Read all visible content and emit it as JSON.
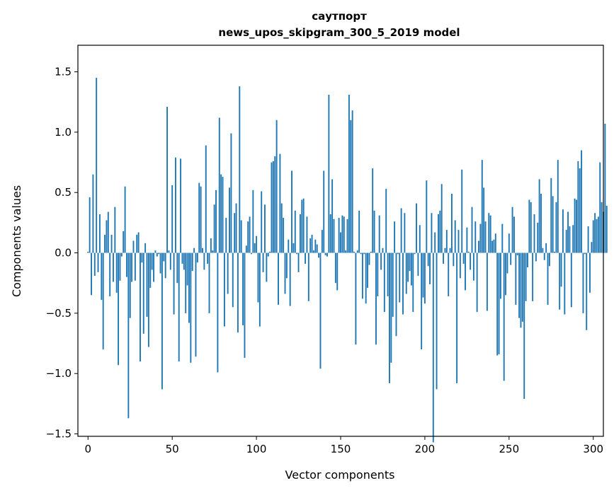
{
  "chart_data": {
    "type": "bar",
    "title_lines": [
      "саутпорт",
      "news_upos_skipgram_300_5_2019 model"
    ],
    "xlabel": "Vector components",
    "ylabel": "Components values",
    "xlim": [
      -6,
      306
    ],
    "ylim": [
      -1.52,
      1.72
    ],
    "x_ticks": [
      0,
      50,
      100,
      150,
      200,
      250,
      300
    ],
    "y_ticks": [
      -1.5,
      -1.0,
      -0.5,
      0.0,
      0.5,
      1.0,
      1.5
    ],
    "y_tick_labels": [
      "−1.5",
      "−1.0",
      "−0.5",
      "0.0",
      "0.5",
      "1.0",
      "1.5"
    ],
    "grid": false,
    "bar_color": "#1f77b4",
    "values": [
      0.01,
      0.46,
      -0.35,
      0.65,
      -0.19,
      1.45,
      -0.16,
      0.32,
      -0.39,
      -0.8,
      0.15,
      0.27,
      0.34,
      -0.36,
      0.15,
      -0.24,
      0.38,
      -0.33,
      -0.93,
      -0.23,
      -0.03,
      0.18,
      0.55,
      -0.2,
      -1.37,
      -0.54,
      -0.24,
      0.1,
      -0.23,
      0.15,
      0.17,
      -0.9,
      -0.08,
      -0.67,
      0.08,
      -0.53,
      -0.78,
      -0.29,
      -0.14,
      -0.24,
      0.02,
      -0.03,
      -0.01,
      -0.17,
      -1.13,
      -0.07,
      -0.21,
      1.21,
      0.02,
      -0.14,
      0.56,
      -0.51,
      0.79,
      -0.25,
      -0.9,
      0.78,
      -0.09,
      -0.14,
      -0.5,
      -0.27,
      -0.58,
      -0.91,
      -0.15,
      0.04,
      -0.86,
      -0.08,
      0.58,
      0.55,
      0.04,
      -0.14,
      0.89,
      -0.09,
      -0.5,
      0.12,
      0.02,
      0.4,
      0.52,
      -0.99,
      1.12,
      0.65,
      0.63,
      -0.61,
      0.29,
      -0.34,
      0.54,
      0.99,
      -0.45,
      0.33,
      0.41,
      -0.66,
      1.38,
      0.27,
      -0.6,
      -0.87,
      0.06,
      0.26,
      0.3,
      -0.01,
      0.52,
      0.08,
      0.14,
      -0.41,
      -0.61,
      0.51,
      -0.16,
      0.4,
      -0.24,
      -0.03,
      0.01,
      0.75,
      0.76,
      0.8,
      1.1,
      -0.43,
      0.82,
      0.41,
      0.29,
      -0.34,
      -0.21,
      0.11,
      -0.44,
      0.68,
      0.08,
      0.35,
      -0.01,
      -0.16,
      0.32,
      0.44,
      0.45,
      -0.09,
      0.3,
      -0.4,
      0.12,
      0.15,
      0.02,
      0.11,
      0.07,
      -0.04,
      -0.96,
      0.19,
      0.68,
      -0.02,
      -0.03,
      1.31,
      0.32,
      0.61,
      0.28,
      -0.25,
      -0.31,
      0.29,
      0.17,
      0.31,
      0.3,
      0.02,
      0.28,
      1.31,
      1.1,
      1.18,
      0.01,
      -0.76,
      0.02,
      0.35,
      -0.01,
      -0.38,
      -0.01,
      -0.42,
      -0.29,
      -0.1,
      0.01,
      0.7,
      0.35,
      -0.76,
      -0.36,
      0.31,
      -0.14,
      0.04,
      -0.49,
      0.53,
      -0.36,
      -1.08,
      -0.91,
      -0.53,
      0.26,
      -0.69,
      -0.01,
      -0.41,
      0.37,
      -0.51,
      0.33,
      -0.34,
      -0.24,
      -0.15,
      -0.27,
      -0.49,
      -0.01,
      0.41,
      -0.19,
      0.23,
      -0.8,
      -0.37,
      -0.42,
      0.6,
      -0.11,
      -0.26,
      0.33,
      -1.57,
      0.17,
      -1.13,
      0.32,
      0.35,
      0.57,
      -0.09,
      0.04,
      0.19,
      -0.36,
      0.04,
      0.49,
      -0.11,
      0.27,
      -1.08,
      0.19,
      -0.21,
      0.69,
      -0.09,
      -0.31,
      0.21,
      0.01,
      -0.14,
      0.38,
      -0.23,
      0.26,
      -0.49,
      0.1,
      0.24,
      0.77,
      0.54,
      0.26,
      -0.48,
      0.33,
      0.31,
      0.1,
      0.11,
      0.16,
      -0.85,
      -0.84,
      -0.38,
      0.24,
      -1.06,
      -0.35,
      -0.17,
      0.16,
      -0.1,
      0.38,
      0.3,
      -0.43,
      -0.02,
      -0.54,
      -0.62,
      -0.57,
      -1.21,
      -0.4,
      -0.12,
      0.44,
      0.42,
      -0.4,
      0.32,
      -0.07,
      0.25,
      0.61,
      0.49,
      0.04,
      -0.06,
      0.08,
      -0.43,
      -0.11,
      0.62,
      0.47,
      0.01,
      0.42,
      0.77,
      -0.47,
      -0.28,
      0.36,
      -0.51,
      0.19,
      0.34,
      0.22,
      -0.45,
      0.23,
      0.45,
      0.44,
      0.76,
      0.7,
      0.85,
      -0.5,
      -0.01,
      -0.64,
      0.22,
      -0.33,
      0.09,
      0.27,
      0.33,
      0.28,
      0.3,
      0.75,
      0.42,
      0.34,
      1.07,
      0.39
    ]
  }
}
